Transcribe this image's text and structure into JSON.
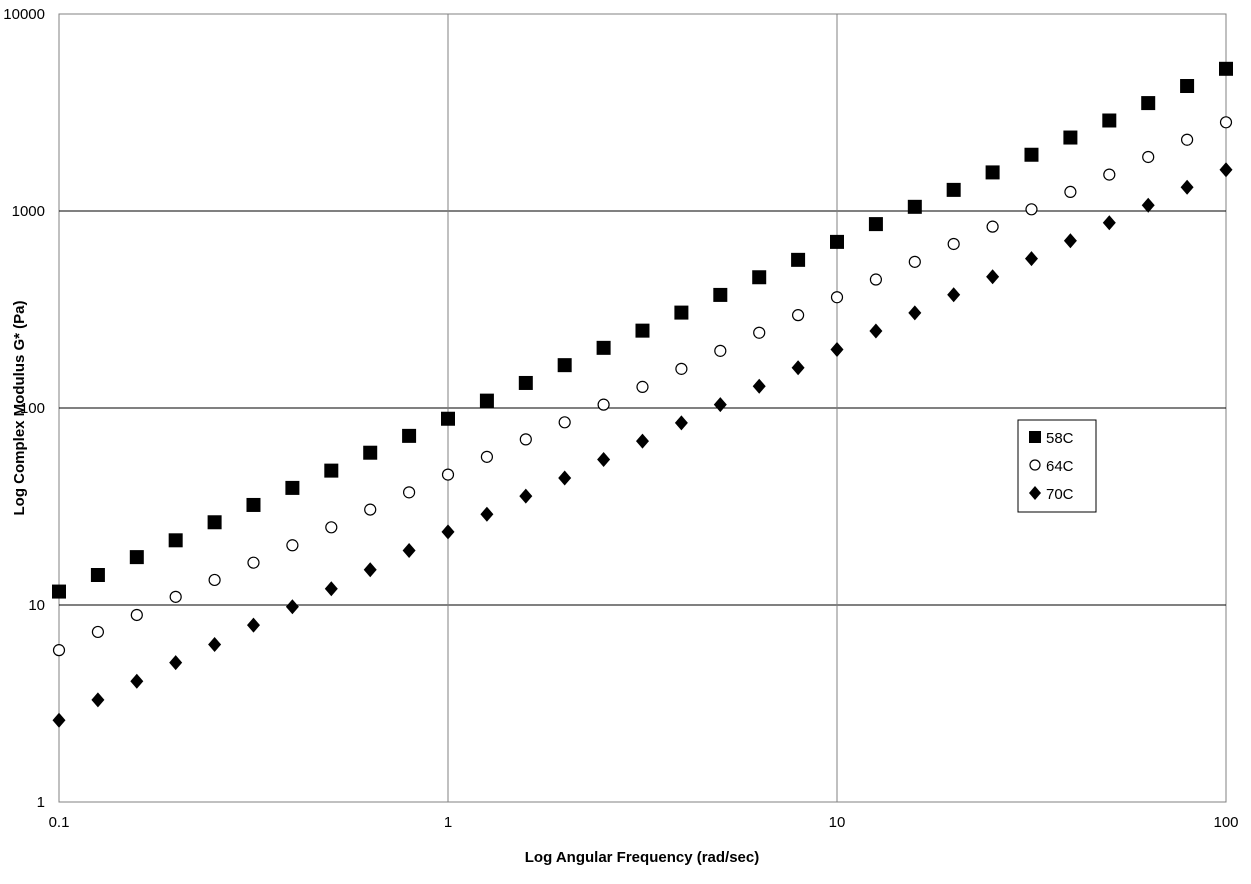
{
  "chart_data": {
    "type": "scatter",
    "title": "",
    "xlabel": "Log Angular Frequency (rad/sec)",
    "ylabel": "Log Complex Modulus G* (Pa)",
    "xscale": "log",
    "yscale": "log",
    "xlim": [
      0.1,
      100
    ],
    "ylim": [
      1,
      10000
    ],
    "x_ticks": [
      "0.1",
      "1",
      "10",
      "100"
    ],
    "y_ticks": [
      "1",
      "10",
      "100",
      "1000",
      "10000"
    ],
    "grid": "horizontal major lines plus vertical lines at each decade",
    "legend_position": "right",
    "x": [
      0.1,
      0.1259,
      0.1585,
      0.1995,
      0.2512,
      0.3162,
      0.3981,
      0.5012,
      0.631,
      0.7943,
      1,
      1.259,
      1.585,
      1.995,
      2.512,
      3.162,
      3.981,
      5.012,
      6.31,
      7.943,
      10,
      12.59,
      15.85,
      19.95,
      25.12,
      31.62,
      39.81,
      50.12,
      63.1,
      79.43,
      100
    ],
    "series": [
      {
        "name": "58C",
        "marker": "square",
        "color": "#000000",
        "values": [
          11.7,
          14.2,
          17.5,
          21.3,
          26.3,
          32.2,
          39.3,
          48.1,
          59.3,
          72.2,
          88.2,
          109,
          134,
          165,
          202,
          247,
          305,
          375,
          461,
          565,
          697,
          858,
          1050,
          1280,
          1570,
          1930,
          2360,
          2880,
          3530,
          4310,
          5270
        ]
      },
      {
        "name": "64C",
        "marker": "circle-open",
        "color": "#000000",
        "values": [
          5.9,
          7.3,
          8.9,
          11.0,
          13.4,
          16.4,
          20.1,
          24.8,
          30.5,
          37.3,
          45.9,
          56.5,
          69.3,
          84.6,
          104,
          128,
          158,
          195,
          241,
          296,
          365,
          449,
          552,
          680,
          833,
          1020,
          1250,
          1530,
          1880,
          2300,
          2820
        ]
      },
      {
        "name": "70C",
        "marker": "diamond",
        "color": "#000000",
        "values": [
          2.6,
          3.3,
          4.1,
          5.1,
          6.3,
          7.9,
          9.8,
          12.1,
          15.1,
          18.9,
          23.5,
          28.9,
          35.7,
          44.1,
          54.8,
          67.9,
          84.1,
          104,
          129,
          160,
          198,
          246,
          304,
          376,
          464,
          573,
          706,
          872,
          1070,
          1320,
          1620
        ]
      }
    ]
  }
}
